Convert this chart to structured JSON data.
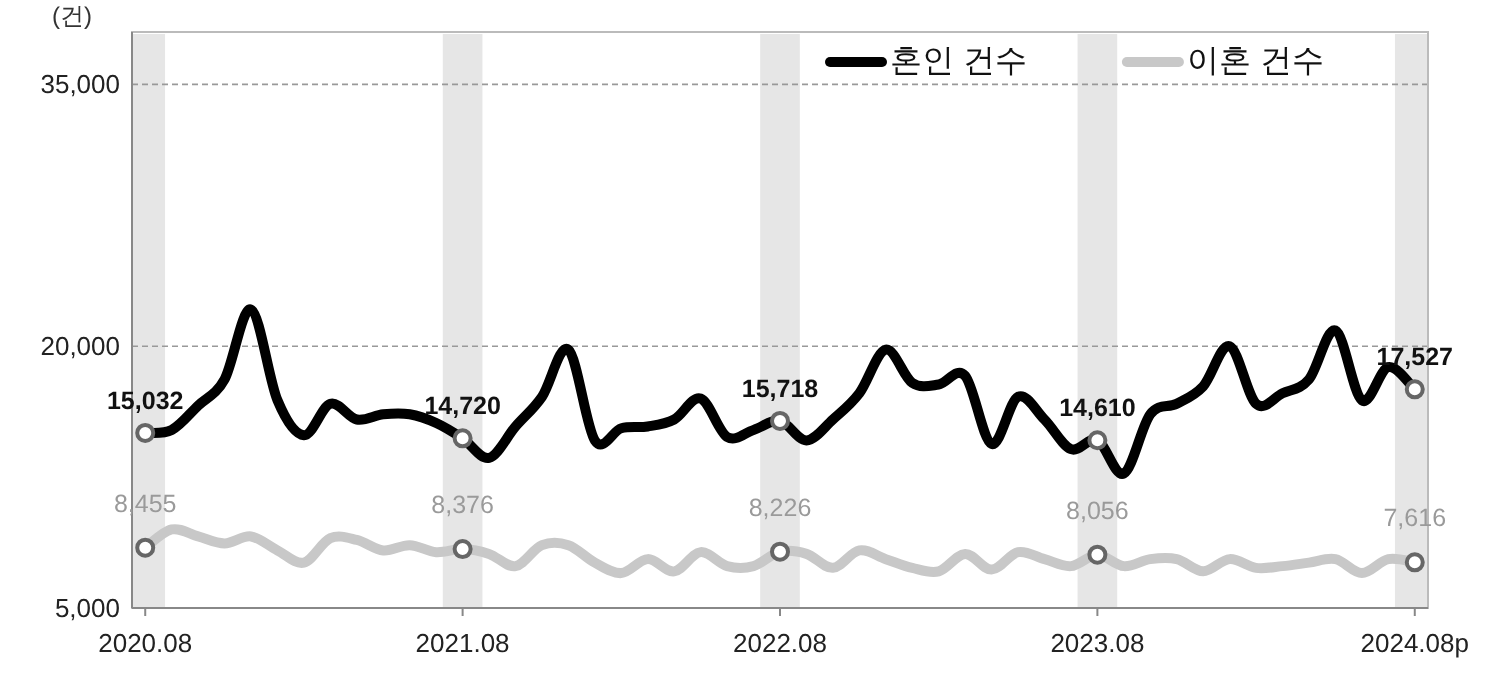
{
  "chart_data": {
    "type": "line",
    "ylabel": "(건)",
    "categories": [
      "2020.08",
      null,
      null,
      null,
      null,
      null,
      null,
      null,
      null,
      null,
      null,
      null,
      "2021.08",
      null,
      null,
      null,
      null,
      null,
      null,
      null,
      null,
      null,
      null,
      null,
      "2022.08",
      null,
      null,
      null,
      null,
      null,
      null,
      null,
      null,
      null,
      null,
      null,
      "2023.08",
      null,
      null,
      null,
      null,
      null,
      null,
      null,
      null,
      null,
      null,
      null,
      "2024.08p"
    ],
    "series": [
      {
        "name": "혼인 건수",
        "color": "#000000",
        "values": [
          15032,
          15200,
          16600,
          18100,
          22100,
          16900,
          14900,
          16700,
          15800,
          16100,
          16100,
          15600,
          14720,
          13600,
          15400,
          17100,
          19800,
          14600,
          15300,
          15400,
          15800,
          17000,
          14800,
          15200,
          15718,
          14600,
          15800,
          17300,
          19800,
          17900,
          17800,
          18300,
          14400,
          17100,
          15800,
          14100,
          14610,
          12700,
          16100,
          16700,
          17700,
          20000,
          16700,
          17300,
          18100,
          20900,
          16900,
          18800,
          17527
        ],
        "value_labels": [
          "15,032",
          null,
          null,
          null,
          null,
          null,
          null,
          null,
          null,
          null,
          null,
          null,
          "14,720",
          null,
          null,
          null,
          null,
          null,
          null,
          null,
          null,
          null,
          null,
          null,
          "15,718",
          null,
          null,
          null,
          null,
          null,
          null,
          null,
          null,
          null,
          null,
          null,
          "14,610",
          null,
          null,
          null,
          null,
          null,
          null,
          null,
          null,
          null,
          null,
          null,
          "17,527"
        ]
      },
      {
        "name": "이혼 건수",
        "color": "#c8c8c8",
        "values": [
          8455,
          9500,
          9100,
          8700,
          9100,
          8300,
          7600,
          9000,
          8900,
          8300,
          8600,
          8200,
          8376,
          8100,
          7400,
          8600,
          8600,
          7600,
          7000,
          7800,
          7100,
          8200,
          7400,
          7400,
          8226,
          8100,
          7300,
          8300,
          7800,
          7300,
          7100,
          8100,
          7200,
          8200,
          7800,
          7400,
          8056,
          7400,
          7800,
          7800,
          7100,
          7800,
          7300,
          7400,
          7600,
          7800,
          7000,
          7800,
          7616
        ],
        "value_labels": [
          "8,455",
          null,
          null,
          null,
          null,
          null,
          null,
          null,
          null,
          null,
          null,
          null,
          "8,376",
          null,
          null,
          null,
          null,
          null,
          null,
          null,
          null,
          null,
          null,
          null,
          "8,226",
          null,
          null,
          null,
          null,
          null,
          null,
          null,
          null,
          null,
          null,
          null,
          "8,056",
          null,
          null,
          null,
          null,
          null,
          null,
          null,
          null,
          null,
          null,
          null,
          "7,616"
        ]
      }
    ],
    "ylim": [
      5000,
      38000
    ],
    "yticks": [
      {
        "value": 5000,
        "label": "5,000"
      },
      {
        "value": 20000,
        "label": "20,000"
      },
      {
        "value": 35000,
        "label": "35,000"
      }
    ],
    "grid": "y",
    "legend": "top right",
    "line_style": "solid"
  }
}
